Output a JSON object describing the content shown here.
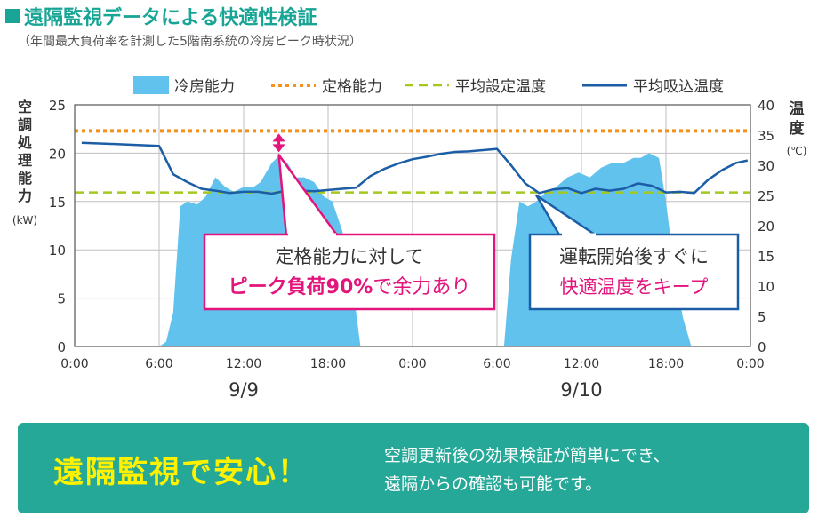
{
  "title": "遠隔監視データによる快適性検証",
  "subtitle": "（年間最大負荷率を計測した5階南系統の冷房ピーク時状況）",
  "colors": {
    "accent": "#19a596",
    "capacity_fill": "#62c2ee",
    "rated": "#f3921f",
    "setpoint": "#a5c821",
    "intake": "#1b5ea6",
    "callout1": "#e3147c",
    "callout2": "#1b5ea6",
    "banner": "#25a898",
    "banner_head": "#fff200"
  },
  "chart_data": {
    "type": "area",
    "x_label_left": "空調処理能力",
    "x_unit_left": "(kW)",
    "y_right_label": "温度",
    "y_right_unit": "(℃)",
    "xlim": [
      0,
      48
    ],
    "ylim_left": [
      0,
      25
    ],
    "ylim_right": [
      0,
      40
    ],
    "left_ticks": [
      0,
      5,
      10,
      15,
      20,
      25
    ],
    "right_ticks": [
      0,
      5,
      10,
      15,
      20,
      25,
      30,
      35,
      40
    ],
    "x_ticks": [
      0,
      6,
      12,
      18,
      24,
      30,
      36,
      42,
      48
    ],
    "x_tick_labels": [
      "0:00",
      "6:00",
      "12:00",
      "18:00",
      "0:00",
      "6:00",
      "12:00",
      "18:00",
      "0:00"
    ],
    "date_labels": [
      {
        "text": "9/9",
        "at": 12
      },
      {
        "text": "9/10",
        "at": 36
      }
    ],
    "legend": [
      "冷房能力",
      "定格能力",
      "平均設定温度",
      "平均吸込温度"
    ],
    "legend_position": "top",
    "series": [
      {
        "name": "冷房能力",
        "axis": "left",
        "kind": "area",
        "points": [
          [
            6,
            0
          ],
          [
            6.5,
            0.5
          ],
          [
            7,
            3.5
          ],
          [
            7.5,
            14.5
          ],
          [
            8,
            15
          ],
          [
            8.7,
            14.7
          ],
          [
            9.3,
            15.5
          ],
          [
            10,
            17.5
          ],
          [
            10.7,
            16.5
          ],
          [
            11.3,
            16
          ],
          [
            12,
            16.5
          ],
          [
            12.7,
            16.5
          ],
          [
            13.2,
            17
          ],
          [
            14,
            19
          ],
          [
            14.5,
            19.7
          ],
          [
            15.1,
            19
          ],
          [
            15.7,
            17.5
          ],
          [
            16.3,
            17.5
          ],
          [
            17,
            17
          ],
          [
            17.7,
            15.5
          ],
          [
            18.3,
            15
          ],
          [
            19,
            12
          ],
          [
            19.6,
            8
          ],
          [
            20.3,
            0
          ],
          [
            30.5,
            0
          ],
          [
            31,
            9
          ],
          [
            31.6,
            15
          ],
          [
            32.2,
            14.5
          ],
          [
            32.8,
            15
          ],
          [
            33.5,
            16
          ],
          [
            34.2,
            16.5
          ],
          [
            35,
            17.5
          ],
          [
            35.8,
            18
          ],
          [
            36.6,
            17.5
          ],
          [
            37.4,
            18.5
          ],
          [
            38.2,
            19
          ],
          [
            39,
            19
          ],
          [
            39.7,
            19.5
          ],
          [
            40.2,
            19.5
          ],
          [
            40.8,
            20
          ],
          [
            41.5,
            19.5
          ],
          [
            42,
            15
          ],
          [
            42.6,
            8
          ],
          [
            43.2,
            3
          ],
          [
            43.8,
            0
          ]
        ]
      },
      {
        "name": "定格能力",
        "axis": "left",
        "kind": "dotted",
        "value": 22.3
      },
      {
        "name": "平均設定温度",
        "axis": "right",
        "kind": "dashed",
        "value": 25.5
      },
      {
        "name": "平均吸込温度",
        "axis": "right",
        "kind": "line",
        "points": [
          [
            0.5,
            33.7
          ],
          [
            3,
            33.5
          ],
          [
            6,
            33.2
          ],
          [
            7,
            28.5
          ],
          [
            8,
            27.2
          ],
          [
            9,
            26.1
          ],
          [
            10,
            25.8
          ],
          [
            11,
            25.4
          ],
          [
            12,
            25.6
          ],
          [
            13,
            25.6
          ],
          [
            14,
            25.3
          ],
          [
            15,
            25.8
          ],
          [
            16,
            25.8
          ],
          [
            17,
            25.7
          ],
          [
            18,
            25.9
          ],
          [
            19,
            26.1
          ],
          [
            20,
            26.3
          ],
          [
            21,
            28.2
          ],
          [
            22,
            29.4
          ],
          [
            23,
            30.3
          ],
          [
            24,
            31
          ],
          [
            25,
            31.4
          ],
          [
            26,
            31.9
          ],
          [
            27,
            32.2
          ],
          [
            28,
            32.3
          ],
          [
            29,
            32.5
          ],
          [
            30,
            32.7
          ],
          [
            31,
            30
          ],
          [
            32,
            27
          ],
          [
            33,
            25.4
          ],
          [
            34,
            26
          ],
          [
            35,
            26.2
          ],
          [
            36,
            25.4
          ],
          [
            37,
            26.1
          ],
          [
            38,
            25.8
          ],
          [
            39,
            26.1
          ],
          [
            40,
            27
          ],
          [
            41,
            26.6
          ],
          [
            42,
            25.5
          ],
          [
            43,
            25.6
          ],
          [
            44,
            25.4
          ],
          [
            45,
            27.6
          ],
          [
            46,
            29.2
          ],
          [
            47,
            30.4
          ],
          [
            47.8,
            30.8
          ]
        ]
      }
    ],
    "annotations": [
      {
        "line1": "定格能力に対して",
        "line2a": "ピーク負荷90%",
        "line2b": "で余力あり",
        "target_x": 14.5
      },
      {
        "line1": "運転開始後すぐに",
        "line2a": "快適温度をキープ",
        "line2b": "",
        "target_x": 32.8
      }
    ]
  },
  "banner": {
    "headline": "遠隔監視で安心！",
    "line1": "空調更新後の効果検証が簡単にでき、",
    "line2": "遠隔からの確認も可能です。"
  }
}
